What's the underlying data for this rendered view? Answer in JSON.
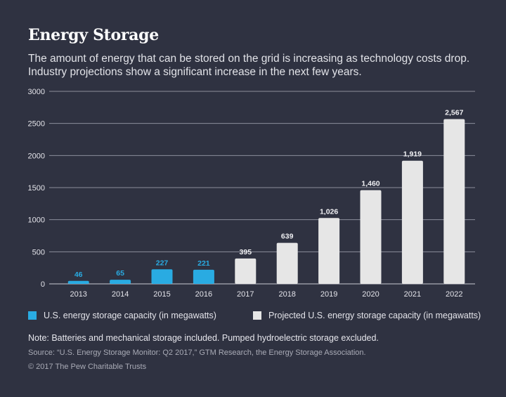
{
  "title": "Energy Storage",
  "subtitle": "The amount of energy that can be stored on the grid is increasing as technology costs drop. Industry projections show a significant increase in the next few years.",
  "legend": {
    "actual": "U.S. energy storage capacity (in megawatts)",
    "projected": "Projected U.S. energy storage capacity (in megawatts)"
  },
  "note": "Note: Batteries and mechanical storage included. Pumped hydroelectric storage excluded.",
  "source": "Source: “U.S. Energy Storage Monitor: Q2 2017,” GTM Research, the Energy Storage Association.",
  "copyright": "© 2017 The Pew Charitable Trusts",
  "colors": {
    "background": "#2f3241",
    "actual": "#29abe2",
    "projected": "#e6e6e6",
    "gridline": "#8c8e9b"
  },
  "chart_data": {
    "type": "bar",
    "categories": [
      "2013",
      "2014",
      "2015",
      "2016",
      "2017",
      "2018",
      "2019",
      "2020",
      "2021",
      "2022"
    ],
    "series": [
      {
        "name": "U.S. energy storage capacity (in megawatts)",
        "values": [
          46,
          65,
          227,
          221,
          null,
          null,
          null,
          null,
          null,
          null
        ]
      },
      {
        "name": "Projected U.S. energy storage capacity (in megawatts)",
        "values": [
          null,
          null,
          null,
          null,
          395,
          639,
          1026,
          1460,
          1919,
          2567
        ]
      }
    ],
    "data_labels": [
      "46",
      "65",
      "227",
      "221",
      "395",
      "639",
      "1,026",
      "1,460",
      "1,919",
      "2,567"
    ],
    "ylim": [
      0,
      3000
    ],
    "yticks": [
      0,
      500,
      1000,
      1500,
      2000,
      2500,
      3000
    ],
    "ytick_labels": [
      "0",
      "500",
      "1000",
      "1500",
      "2000",
      "2500",
      "3000"
    ],
    "grid": true,
    "legend_position": "bottom"
  }
}
